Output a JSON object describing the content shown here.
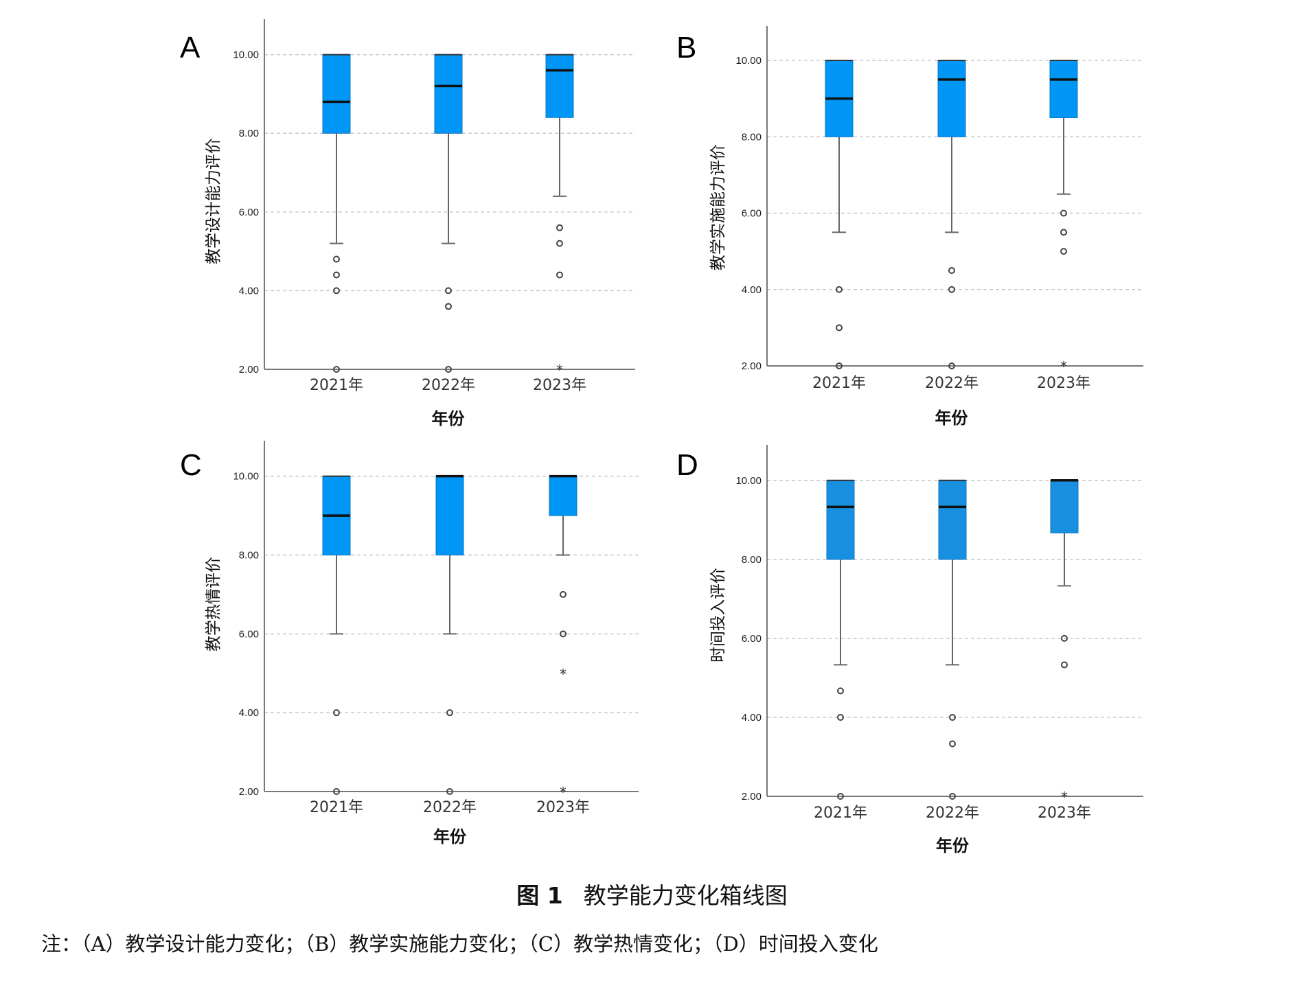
{
  "caption": {
    "figure_number": "图 1",
    "title": "教学能力变化箱线图"
  },
  "note": "注：（A）教学设计能力变化；（B）教学实施能力变化；（C）教学热情变化；（D）时间投入变化",
  "colors": {
    "box": "#0096f5",
    "box_d": "#1890df",
    "grid": "#c8c8c8",
    "axis": "#777777",
    "whisker": "#666666"
  },
  "chart_data": [
    {
      "type": "boxplot",
      "panel": "A",
      "xlabel": "年份",
      "ylabel": "教学设计能力评价",
      "categories": [
        "2021年",
        "2022年",
        "2023年"
      ],
      "ylim": [
        2,
        10.9
      ],
      "yticks": [
        "2.00",
        "4.00",
        "6.00",
        "8.00",
        "10.00"
      ],
      "grid": true,
      "boxes": [
        {
          "category": "2021年",
          "whisker_low": 5.2,
          "q1": 8.0,
          "median": 8.8,
          "q3": 10.0,
          "whisker_high": 10.0,
          "outliers": [
            4.8,
            4.4,
            4.0,
            2.0
          ],
          "extremes": []
        },
        {
          "category": "2022年",
          "whisker_low": 5.2,
          "q1": 8.0,
          "median": 9.2,
          "q3": 10.0,
          "whisker_high": 10.0,
          "outliers": [
            4.0,
            3.6,
            2.0
          ],
          "extremes": []
        },
        {
          "category": "2023年",
          "whisker_low": 6.4,
          "q1": 8.4,
          "median": 9.6,
          "q3": 10.0,
          "whisker_high": 10.0,
          "outliers": [
            5.6,
            5.2,
            4.4
          ],
          "extremes": [
            2.0
          ]
        }
      ]
    },
    {
      "type": "boxplot",
      "panel": "B",
      "xlabel": "年份",
      "ylabel": "教学实施能力评价",
      "categories": [
        "2021年",
        "2022年",
        "2023年"
      ],
      "ylim": [
        2,
        10.9
      ],
      "yticks": [
        "2.00",
        "4.00",
        "6.00",
        "8.00",
        "10.00"
      ],
      "grid": true,
      "boxes": [
        {
          "category": "2021年",
          "whisker_low": 5.5,
          "q1": 8.0,
          "median": 9.0,
          "q3": 10.0,
          "whisker_high": 10.0,
          "outliers": [
            4.0,
            3.0,
            2.0
          ],
          "extremes": []
        },
        {
          "category": "2022年",
          "whisker_low": 5.5,
          "q1": 8.0,
          "median": 9.5,
          "q3": 10.0,
          "whisker_high": 10.0,
          "outliers": [
            4.5,
            4.0,
            2.0
          ],
          "extremes": []
        },
        {
          "category": "2023年",
          "whisker_low": 6.5,
          "q1": 8.5,
          "median": 9.5,
          "q3": 10.0,
          "whisker_high": 10.0,
          "outliers": [
            6.0,
            5.5,
            5.0
          ],
          "extremes": [
            2.0
          ]
        }
      ]
    },
    {
      "type": "boxplot",
      "panel": "C",
      "xlabel": "年份",
      "ylabel": "教学热情评价",
      "categories": [
        "2021年",
        "2022年",
        "2023年"
      ],
      "ylim": [
        2,
        10.9
      ],
      "yticks": [
        "2.00",
        "4.00",
        "6.00",
        "8.00",
        "10.00"
      ],
      "grid": true,
      "boxes": [
        {
          "category": "2021年",
          "whisker_low": 6.0,
          "q1": 8.0,
          "median": 9.0,
          "q3": 10.0,
          "whisker_high": 10.0,
          "outliers": [
            4.0,
            2.0
          ],
          "extremes": []
        },
        {
          "category": "2022年",
          "whisker_low": 6.0,
          "q1": 8.0,
          "median": 10.0,
          "q3": 10.0,
          "whisker_high": 10.0,
          "outliers": [
            4.0,
            2.0
          ],
          "extremes": []
        },
        {
          "category": "2023年",
          "whisker_low": 8.0,
          "q1": 9.0,
          "median": 10.0,
          "q3": 10.0,
          "whisker_high": 10.0,
          "outliers": [
            7.0,
            6.0
          ],
          "extremes": [
            5.0,
            2.0
          ]
        }
      ]
    },
    {
      "type": "boxplot",
      "panel": "D",
      "xlabel": "年份",
      "ylabel": "时间投入评价",
      "categories": [
        "2021年",
        "2022年",
        "2023年"
      ],
      "ylim": [
        2,
        10.9
      ],
      "yticks": [
        "2.00",
        "4.00",
        "6.00",
        "8.00",
        "10.00"
      ],
      "grid": true,
      "boxes": [
        {
          "category": "2021年",
          "whisker_low": 5.33,
          "q1": 8.0,
          "median": 9.33,
          "q3": 10.0,
          "whisker_high": 10.0,
          "outliers": [
            4.67,
            4.0,
            2.0
          ],
          "extremes": []
        },
        {
          "category": "2022年",
          "whisker_low": 5.33,
          "q1": 8.0,
          "median": 9.33,
          "q3": 10.0,
          "whisker_high": 10.0,
          "outliers": [
            4.0,
            3.33,
            2.0
          ],
          "extremes": []
        },
        {
          "category": "2023年",
          "whisker_low": 7.33,
          "q1": 8.67,
          "median": 10.0,
          "q3": 10.0,
          "whisker_high": 10.0,
          "outliers": [
            6.0,
            5.33
          ],
          "extremes": [
            2.0
          ]
        }
      ]
    }
  ]
}
